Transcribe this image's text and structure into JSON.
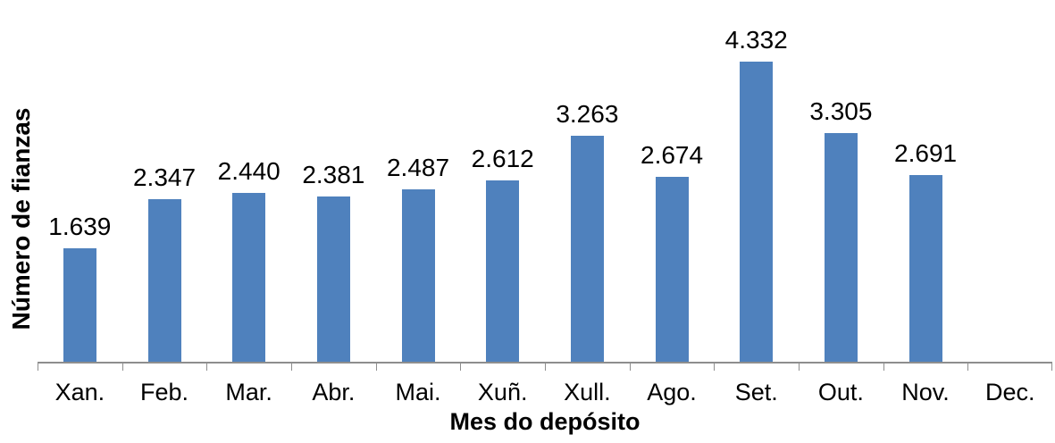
{
  "chart_data": {
    "type": "bar",
    "title": "",
    "categories": [
      "Xan.",
      "Feb.",
      "Mar.",
      "Abr.",
      "Mai.",
      "Xuñ.",
      "Xull.",
      "Ago.",
      "Set.",
      "Out.",
      "Nov.",
      "Dec."
    ],
    "values": [
      1639,
      2347,
      2440,
      2381,
      2487,
      2612,
      3263,
      2674,
      4332,
      3305,
      2691,
      0
    ],
    "value_labels": [
      "1.639",
      "2.347",
      "2.440",
      "2.381",
      "2.487",
      "2.612",
      "3.263",
      "2.674",
      "4.332",
      "3.305",
      "2.691",
      ""
    ],
    "xlabel": "Mes do depósito",
    "ylabel": "Número de fianzas",
    "ylim": [
      0,
      4500
    ],
    "grid": false,
    "legend": false,
    "data_labels_position": "outside-end",
    "bar_color": "#4F81BD",
    "axis_color": "#8E8E8E",
    "text_color": "#000000"
  }
}
